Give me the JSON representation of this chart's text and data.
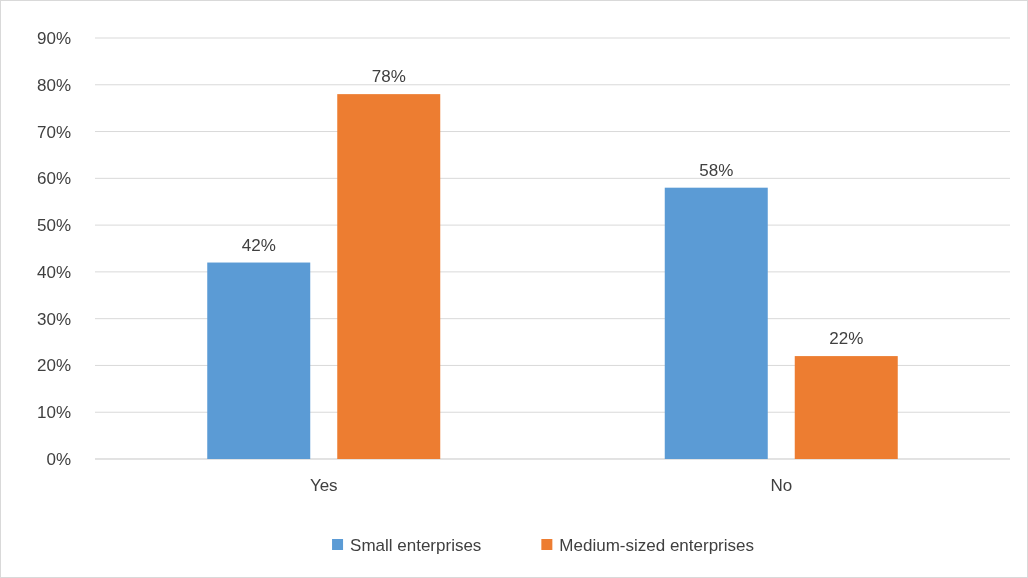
{
  "chart_data": {
    "type": "bar",
    "categories": [
      "Yes",
      "No"
    ],
    "series": [
      {
        "name": "Small enterprises",
        "color": "#5b9bd5",
        "values": [
          42,
          58
        ],
        "value_labels": [
          "42%",
          "58%"
        ]
      },
      {
        "name": "Medium-sized enterprises",
        "color": "#ed7d31",
        "values": [
          78,
          22
        ],
        "value_labels": [
          "78%",
          "22%"
        ]
      }
    ],
    "ylim": [
      0,
      90
    ],
    "yticks": [
      {
        "value": 0,
        "label": "0%"
      },
      {
        "value": 10,
        "label": "10%"
      },
      {
        "value": 20,
        "label": "20%"
      },
      {
        "value": 30,
        "label": "30%"
      },
      {
        "value": 40,
        "label": "40%"
      },
      {
        "value": 50,
        "label": "50%"
      },
      {
        "value": 60,
        "label": "60%"
      },
      {
        "value": 70,
        "label": "70%"
      },
      {
        "value": 80,
        "label": "80%"
      },
      {
        "value": 90,
        "label": "90%"
      }
    ],
    "grid": "y",
    "legend": "bottom"
  }
}
